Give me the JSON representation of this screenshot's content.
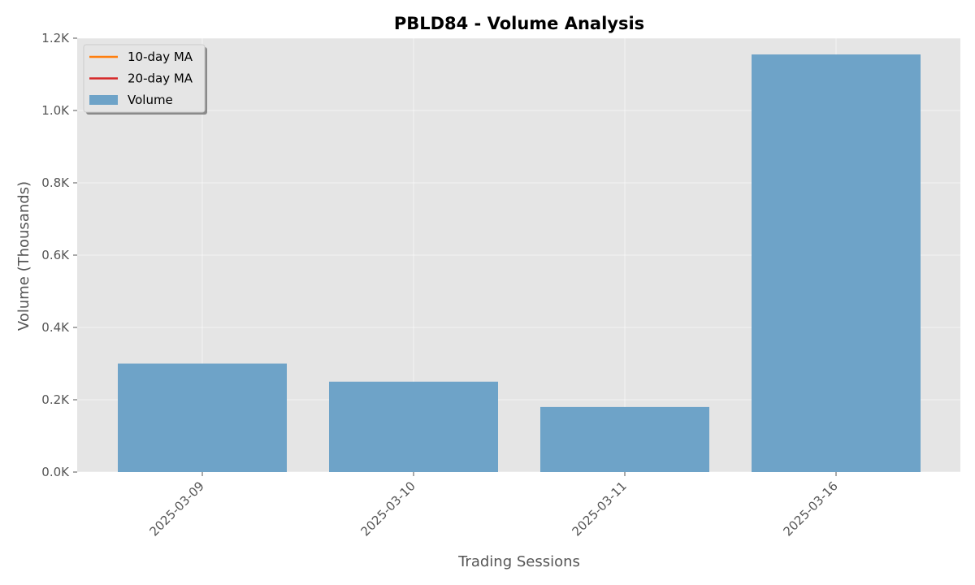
{
  "chart_data": {
    "type": "bar",
    "title": "PBLD84 - Volume Analysis",
    "xlabel": "Trading Sessions",
    "ylabel": "Volume (Thousands)",
    "categories": [
      "2025-03-09",
      "2025-03-10",
      "2025-03-11",
      "2025-03-16"
    ],
    "series": [
      {
        "name": "Volume",
        "values": [
          300,
          250,
          180,
          1155
        ],
        "color": "#6ea3c8"
      }
    ],
    "ylim": [
      0,
      1200
    ],
    "yticks": [
      {
        "value": 0,
        "label": "0.0K"
      },
      {
        "value": 200,
        "label": "0.2K"
      },
      {
        "value": 400,
        "label": "0.4K"
      },
      {
        "value": 600,
        "label": "0.6K"
      },
      {
        "value": 800,
        "label": "0.8K"
      },
      {
        "value": 1000,
        "label": "1.0K"
      },
      {
        "value": 1200,
        "label": "1.2K"
      }
    ],
    "legend": {
      "placement": "top-left",
      "entries": [
        {
          "label": "10-day MA",
          "kind": "line",
          "color": "#ff7f0e"
        },
        {
          "label": "20-day MA",
          "kind": "line",
          "color": "#d62728"
        },
        {
          "label": "Volume",
          "kind": "patch",
          "color": "#6ea3c8"
        }
      ]
    },
    "grid": true,
    "plot_background": "#e5e5e5"
  }
}
